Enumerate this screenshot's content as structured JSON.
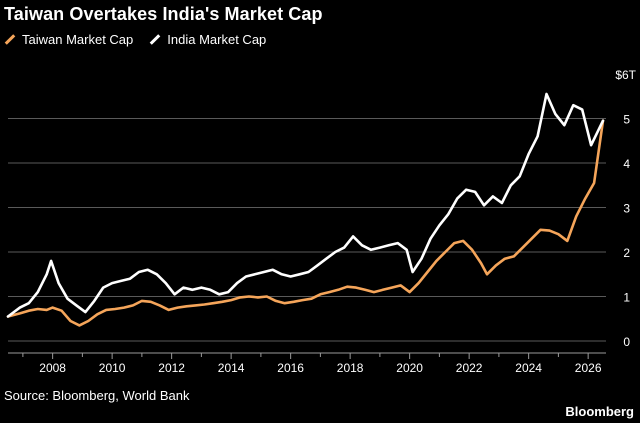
{
  "chart_data": {
    "type": "line",
    "title": "Taiwan Overtakes India's Market Cap",
    "xlabel": "",
    "ylabel": "",
    "unit_label": "$6T",
    "xlim": [
      2006.5,
      2026.6
    ],
    "ylim": [
      0,
      6
    ],
    "x_ticks": [
      2008,
      2010,
      2012,
      2014,
      2016,
      2018,
      2020,
      2022,
      2024,
      2026
    ],
    "y_ticks": [
      0,
      1,
      2,
      3,
      4,
      5
    ],
    "grid": true,
    "legend_position": "top-left",
    "series": [
      {
        "name": "Taiwan Market Cap",
        "color": "#f5a55a",
        "points": [
          [
            2006.5,
            0.55
          ],
          [
            2006.9,
            0.62
          ],
          [
            2007.2,
            0.68
          ],
          [
            2007.5,
            0.72
          ],
          [
            2007.8,
            0.7
          ],
          [
            2008.0,
            0.75
          ],
          [
            2008.3,
            0.68
          ],
          [
            2008.6,
            0.45
          ],
          [
            2008.9,
            0.35
          ],
          [
            2009.2,
            0.45
          ],
          [
            2009.5,
            0.6
          ],
          [
            2009.8,
            0.7
          ],
          [
            2010.1,
            0.72
          ],
          [
            2010.4,
            0.75
          ],
          [
            2010.7,
            0.8
          ],
          [
            2011.0,
            0.9
          ],
          [
            2011.3,
            0.88
          ],
          [
            2011.6,
            0.8
          ],
          [
            2011.9,
            0.7
          ],
          [
            2012.2,
            0.75
          ],
          [
            2012.5,
            0.78
          ],
          [
            2012.8,
            0.8
          ],
          [
            2013.1,
            0.82
          ],
          [
            2013.4,
            0.85
          ],
          [
            2013.7,
            0.88
          ],
          [
            2014.0,
            0.92
          ],
          [
            2014.3,
            0.98
          ],
          [
            2014.6,
            1.0
          ],
          [
            2014.9,
            0.98
          ],
          [
            2015.2,
            1.0
          ],
          [
            2015.5,
            0.9
          ],
          [
            2015.8,
            0.85
          ],
          [
            2016.1,
            0.88
          ],
          [
            2016.4,
            0.92
          ],
          [
            2016.7,
            0.95
          ],
          [
            2017.0,
            1.05
          ],
          [
            2017.3,
            1.1
          ],
          [
            2017.6,
            1.15
          ],
          [
            2017.9,
            1.22
          ],
          [
            2018.2,
            1.2
          ],
          [
            2018.5,
            1.15
          ],
          [
            2018.8,
            1.1
          ],
          [
            2019.1,
            1.15
          ],
          [
            2019.4,
            1.2
          ],
          [
            2019.7,
            1.25
          ],
          [
            2020.0,
            1.1
          ],
          [
            2020.3,
            1.3
          ],
          [
            2020.6,
            1.55
          ],
          [
            2020.9,
            1.8
          ],
          [
            2021.2,
            2.0
          ],
          [
            2021.5,
            2.2
          ],
          [
            2021.8,
            2.25
          ],
          [
            2022.1,
            2.05
          ],
          [
            2022.4,
            1.75
          ],
          [
            2022.6,
            1.5
          ],
          [
            2022.9,
            1.7
          ],
          [
            2023.2,
            1.85
          ],
          [
            2023.5,
            1.9
          ],
          [
            2023.8,
            2.1
          ],
          [
            2024.1,
            2.3
          ],
          [
            2024.4,
            2.5
          ],
          [
            2024.7,
            2.48
          ],
          [
            2025.0,
            2.4
          ],
          [
            2025.3,
            2.25
          ],
          [
            2025.6,
            2.8
          ],
          [
            2025.9,
            3.2
          ],
          [
            2026.2,
            3.55
          ],
          [
            2026.5,
            4.95
          ]
        ]
      },
      {
        "name": "India Market Cap",
        "color": "#ffffff",
        "points": [
          [
            2006.5,
            0.55
          ],
          [
            2006.9,
            0.75
          ],
          [
            2007.2,
            0.85
          ],
          [
            2007.5,
            1.1
          ],
          [
            2007.8,
            1.5
          ],
          [
            2007.95,
            1.8
          ],
          [
            2008.2,
            1.3
          ],
          [
            2008.5,
            0.95
          ],
          [
            2008.8,
            0.8
          ],
          [
            2009.1,
            0.65
          ],
          [
            2009.4,
            0.9
          ],
          [
            2009.7,
            1.2
          ],
          [
            2010.0,
            1.3
          ],
          [
            2010.3,
            1.35
          ],
          [
            2010.6,
            1.4
          ],
          [
            2010.9,
            1.55
          ],
          [
            2011.2,
            1.6
          ],
          [
            2011.5,
            1.5
          ],
          [
            2011.8,
            1.3
          ],
          [
            2012.1,
            1.05
          ],
          [
            2012.4,
            1.2
          ],
          [
            2012.7,
            1.15
          ],
          [
            2013.0,
            1.2
          ],
          [
            2013.3,
            1.15
          ],
          [
            2013.6,
            1.05
          ],
          [
            2013.9,
            1.1
          ],
          [
            2014.2,
            1.3
          ],
          [
            2014.5,
            1.45
          ],
          [
            2014.8,
            1.5
          ],
          [
            2015.1,
            1.55
          ],
          [
            2015.4,
            1.6
          ],
          [
            2015.7,
            1.5
          ],
          [
            2016.0,
            1.45
          ],
          [
            2016.3,
            1.5
          ],
          [
            2016.6,
            1.55
          ],
          [
            2016.9,
            1.7
          ],
          [
            2017.2,
            1.85
          ],
          [
            2017.5,
            2.0
          ],
          [
            2017.8,
            2.1
          ],
          [
            2018.1,
            2.35
          ],
          [
            2018.4,
            2.15
          ],
          [
            2018.7,
            2.05
          ],
          [
            2019.0,
            2.1
          ],
          [
            2019.3,
            2.15
          ],
          [
            2019.6,
            2.2
          ],
          [
            2019.9,
            2.05
          ],
          [
            2020.1,
            1.55
          ],
          [
            2020.4,
            1.85
          ],
          [
            2020.7,
            2.3
          ],
          [
            2021.0,
            2.6
          ],
          [
            2021.3,
            2.85
          ],
          [
            2021.6,
            3.2
          ],
          [
            2021.9,
            3.4
          ],
          [
            2022.2,
            3.35
          ],
          [
            2022.5,
            3.05
          ],
          [
            2022.8,
            3.25
          ],
          [
            2023.1,
            3.1
          ],
          [
            2023.4,
            3.5
          ],
          [
            2023.7,
            3.7
          ],
          [
            2024.0,
            4.2
          ],
          [
            2024.3,
            4.6
          ],
          [
            2024.6,
            5.55
          ],
          [
            2024.9,
            5.1
          ],
          [
            2025.2,
            4.85
          ],
          [
            2025.5,
            5.3
          ],
          [
            2025.8,
            5.2
          ],
          [
            2026.1,
            4.4
          ],
          [
            2026.5,
            4.95
          ]
        ]
      }
    ]
  },
  "footer": {
    "source": "Source: Bloomberg, World Bank",
    "brand": "Bloomberg"
  }
}
